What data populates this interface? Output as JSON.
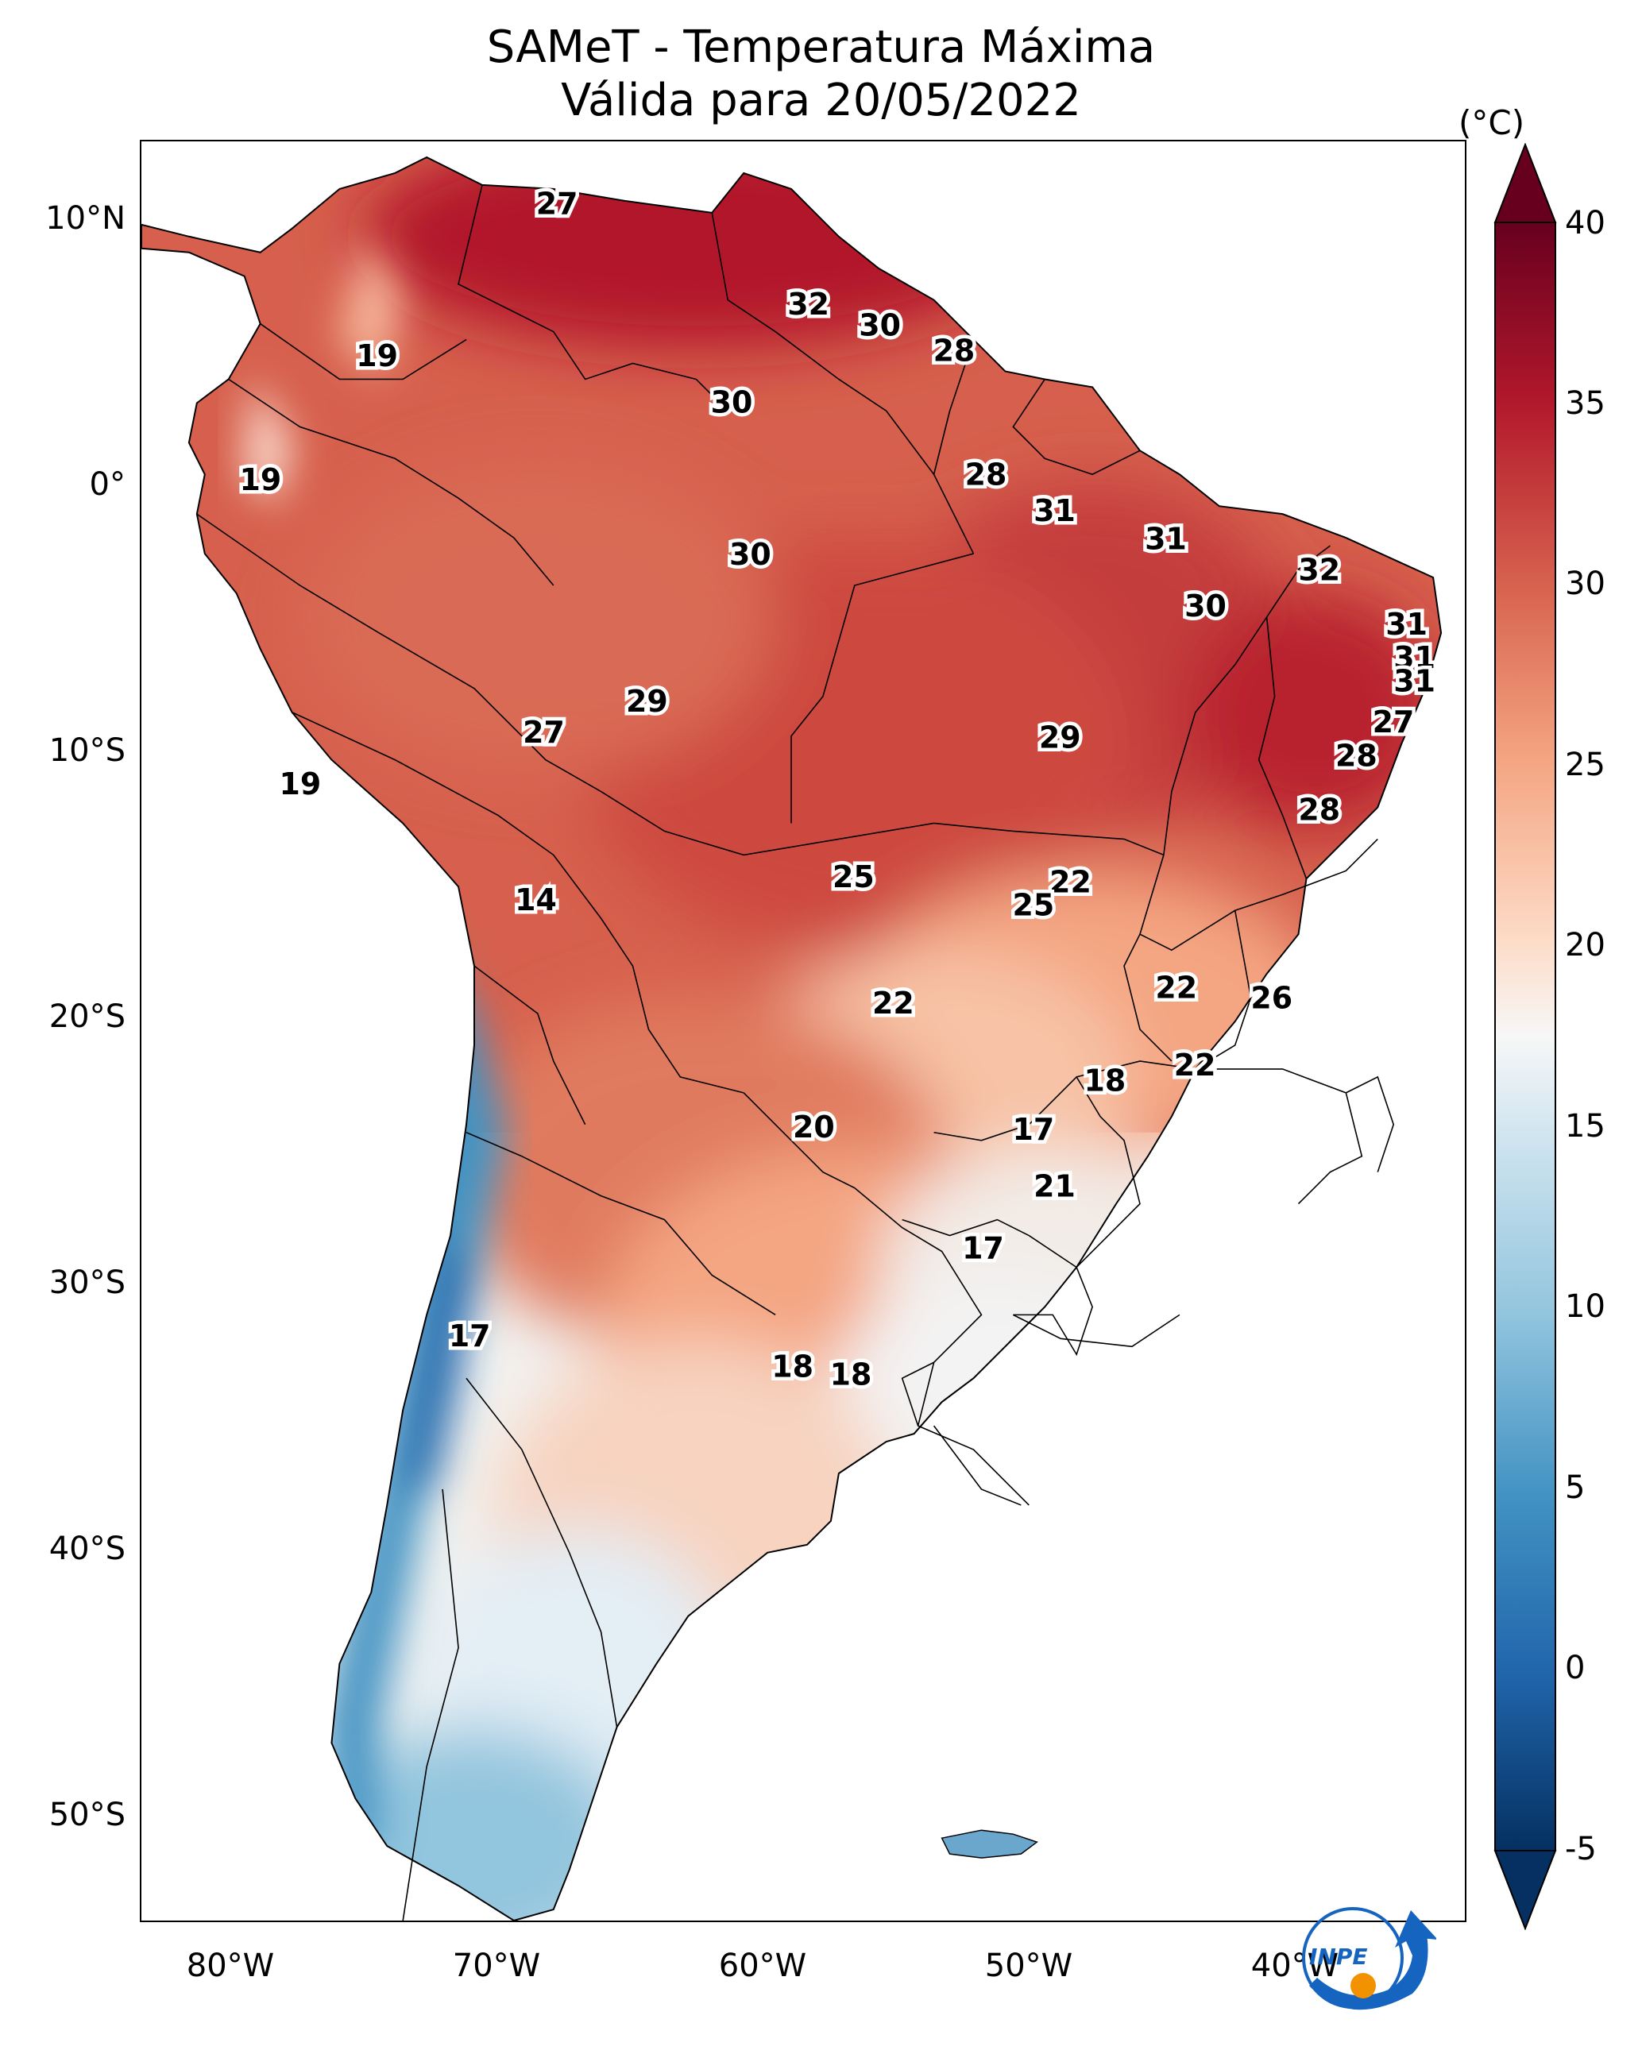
{
  "title": {
    "line1": "SAMeT - Temperatura Máxima",
    "line2": "Válida para 20/05/2022"
  },
  "axes": {
    "lat_labels": [
      "10°N",
      "0°",
      "10°S",
      "20°S",
      "30°S",
      "40°S",
      "50°S"
    ],
    "lon_labels": [
      "80°W",
      "70°W",
      "60°W",
      "50°W",
      "40°W"
    ]
  },
  "colorbar": {
    "unit": "(°C)",
    "ticks": [
      "40",
      "35",
      "30",
      "25",
      "20",
      "15",
      "10",
      "5",
      "0",
      "-5"
    ],
    "min": -5,
    "max": 40,
    "colormap": "RdBu_r",
    "colors": {
      "cold": "#053061",
      "mid": "#f7f7f7",
      "warm": "#67001f"
    }
  },
  "logo": {
    "text": "INPE",
    "primary_color": "#1565c0",
    "accent_color": "#f39200"
  },
  "map": {
    "extent": {
      "lon_min": -83,
      "lon_max": -33,
      "lat_min": -56,
      "lat_max": 13
    },
    "ocean_color": "#ffffff",
    "land_outline_color": "#000000",
    "stations": [
      {
        "value": "27",
        "lon": -67.3,
        "lat": 10.5
      },
      {
        "value": "32",
        "lon": -57.8,
        "lat": 6.6
      },
      {
        "value": "30",
        "lon": -55.1,
        "lat": 5.8
      },
      {
        "value": "28",
        "lon": -52.3,
        "lat": 4.8
      },
      {
        "value": "19",
        "lon": -74.1,
        "lat": 4.6
      },
      {
        "value": "30",
        "lon": -60.7,
        "lat": 2.8
      },
      {
        "value": "28",
        "lon": -51.1,
        "lat": 0.0
      },
      {
        "value": "19",
        "lon": -78.5,
        "lat": -0.2
      },
      {
        "value": "31",
        "lon": -48.5,
        "lat": -1.4
      },
      {
        "value": "31",
        "lon": -44.3,
        "lat": -2.5
      },
      {
        "value": "30",
        "lon": -60.0,
        "lat": -3.1
      },
      {
        "value": "32",
        "lon": -38.5,
        "lat": -3.7
      },
      {
        "value": "30",
        "lon": -42.8,
        "lat": -5.1
      },
      {
        "value": "31",
        "lon": -35.2,
        "lat": -5.8
      },
      {
        "value": "31",
        "lon": -34.9,
        "lat": -7.1
      },
      {
        "value": "31",
        "lon": -34.9,
        "lat": -8.0
      },
      {
        "value": "29",
        "lon": -63.9,
        "lat": -8.8
      },
      {
        "value": "27",
        "lon": -67.8,
        "lat": -10.0
      },
      {
        "value": "27",
        "lon": -35.7,
        "lat": -9.6
      },
      {
        "value": "29",
        "lon": -48.3,
        "lat": -10.2
      },
      {
        "value": "28",
        "lon": -37.1,
        "lat": -10.9
      },
      {
        "value": "19",
        "lon": -77.0,
        "lat": -12.0
      },
      {
        "value": "28",
        "lon": -38.5,
        "lat": -13.0
      },
      {
        "value": "14",
        "lon": -68.1,
        "lat": -16.5
      },
      {
        "value": "25",
        "lon": -56.1,
        "lat": -15.6
      },
      {
        "value": "22",
        "lon": -47.9,
        "lat": -15.8
      },
      {
        "value": "25",
        "lon": -49.3,
        "lat": -16.7
      },
      {
        "value": "22",
        "lon": -43.9,
        "lat": -19.9
      },
      {
        "value": "26",
        "lon": -40.3,
        "lat": -20.3
      },
      {
        "value": "22",
        "lon": -54.6,
        "lat": -20.5
      },
      {
        "value": "22",
        "lon": -43.2,
        "lat": -22.9
      },
      {
        "value": "18",
        "lon": -46.6,
        "lat": -23.5
      },
      {
        "value": "20",
        "lon": -57.6,
        "lat": -25.3
      },
      {
        "value": "17",
        "lon": -49.3,
        "lat": -25.4
      },
      {
        "value": "21",
        "lon": -48.5,
        "lat": -27.6
      },
      {
        "value": "17",
        "lon": -51.2,
        "lat": -30.0
      },
      {
        "value": "17",
        "lon": -70.6,
        "lat": -33.4
      },
      {
        "value": "18",
        "lon": -58.4,
        "lat": -34.6
      },
      {
        "value": "18",
        "lon": -56.2,
        "lat": -34.9
      }
    ]
  }
}
